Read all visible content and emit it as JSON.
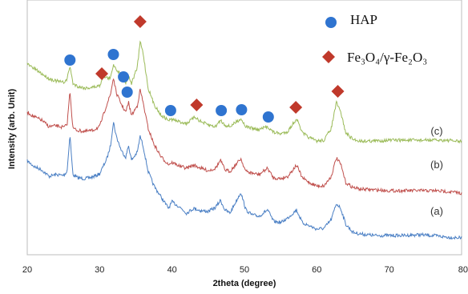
{
  "chart_data": {
    "type": "line",
    "title": "",
    "xlabel": "2theta (degree)",
    "ylabel": "Intensity (arb. Unit)",
    "xlim": [
      20,
      80
    ],
    "y_ticks_shown": false,
    "xticks": [
      20,
      30,
      40,
      50,
      60,
      70,
      80
    ],
    "xtick_labels": [
      "20",
      "30",
      "40",
      "50",
      "60",
      "70",
      "80"
    ],
    "grid": false,
    "legend": {
      "placement": "top-right",
      "entries": [
        {
          "text": "HAP",
          "marker": "circle",
          "color": "#2f74d0"
        },
        {
          "text": "Fe₃O₄/γ-Fe₂O₃",
          "marker": "diamond",
          "color": "#c0392b"
        }
      ]
    },
    "series": [
      {
        "name": "(a)",
        "color": "#4a7fc4",
        "points": [
          [
            20,
            201
          ],
          [
            21,
            208
          ],
          [
            22,
            212
          ],
          [
            23,
            220
          ],
          [
            24,
            218
          ],
          [
            25,
            219
          ],
          [
            25.5,
            214
          ],
          [
            25.9,
            168
          ],
          [
            26.3,
            218
          ],
          [
            27,
            222
          ],
          [
            28,
            223
          ],
          [
            29,
            221
          ],
          [
            30,
            217
          ],
          [
            31,
            198
          ],
          [
            31.5,
            182
          ],
          [
            31.9,
            152
          ],
          [
            32.3,
            170
          ],
          [
            33,
            188
          ],
          [
            33.6,
            196
          ],
          [
            34,
            182
          ],
          [
            34.4,
            200
          ],
          [
            35.2,
            190
          ],
          [
            35.6,
            170
          ],
          [
            36,
            182
          ],
          [
            36.7,
            214
          ],
          [
            37.5,
            232
          ],
          [
            38.5,
            246
          ],
          [
            39.5,
            260
          ],
          [
            40,
            252
          ],
          [
            41,
            258
          ],
          [
            42,
            266
          ],
          [
            43,
            260
          ],
          [
            44,
            263
          ],
          [
            45,
            264
          ],
          [
            46,
            259
          ],
          [
            46.7,
            250
          ],
          [
            47.3,
            262
          ],
          [
            48,
            266
          ],
          [
            49.5,
            240
          ],
          [
            50.2,
            262
          ],
          [
            51,
            268
          ],
          [
            52,
            270
          ],
          [
            53.2,
            262
          ],
          [
            54,
            276
          ],
          [
            55,
            278
          ],
          [
            56,
            272
          ],
          [
            57.2,
            262
          ],
          [
            58,
            278
          ],
          [
            59,
            282
          ],
          [
            60,
            286
          ],
          [
            61,
            285
          ],
          [
            62,
            274
          ],
          [
            62.7,
            254
          ],
          [
            63.3,
            260
          ],
          [
            64,
            280
          ],
          [
            65,
            290
          ],
          [
            66,
            292
          ],
          [
            68,
            294
          ],
          [
            70,
            294
          ],
          [
            72,
            294
          ],
          [
            74,
            293
          ],
          [
            76,
            294
          ],
          [
            78,
            296
          ],
          [
            80,
            297
          ]
        ]
      },
      {
        "name": "(b)",
        "color": "#c0504d",
        "points": [
          [
            20,
            140
          ],
          [
            21,
            146
          ],
          [
            22,
            150
          ],
          [
            23,
            158
          ],
          [
            24,
            157
          ],
          [
            25,
            159
          ],
          [
            25.5,
            156
          ],
          [
            25.9,
            113
          ],
          [
            26.3,
            160
          ],
          [
            27,
            163
          ],
          [
            28,
            164
          ],
          [
            29,
            163
          ],
          [
            30,
            158
          ],
          [
            31,
            130
          ],
          [
            31.5,
            118
          ],
          [
            31.9,
            97
          ],
          [
            32.3,
            116
          ],
          [
            33,
            130
          ],
          [
            33.6,
            140
          ],
          [
            34,
            128
          ],
          [
            34.4,
            144
          ],
          [
            35.2,
            132
          ],
          [
            35.6,
            112
          ],
          [
            36,
            128
          ],
          [
            36.7,
            160
          ],
          [
            37.5,
            180
          ],
          [
            38.5,
            196
          ],
          [
            39.5,
            205
          ],
          [
            40,
            203
          ],
          [
            41,
            207
          ],
          [
            42,
            210
          ],
          [
            43,
            206
          ],
          [
            44,
            210
          ],
          [
            45,
            213
          ],
          [
            46,
            210
          ],
          [
            46.7,
            200
          ],
          [
            47.3,
            212
          ],
          [
            48,
            214
          ],
          [
            49.5,
            198
          ],
          [
            50.2,
            214
          ],
          [
            51,
            216
          ],
          [
            52,
            218
          ],
          [
            53.2,
            210
          ],
          [
            54,
            222
          ],
          [
            55,
            223
          ],
          [
            56,
            220
          ],
          [
            57.2,
            206
          ],
          [
            58,
            222
          ],
          [
            59,
            228
          ],
          [
            60,
            232
          ],
          [
            61,
            232
          ],
          [
            62,
            220
          ],
          [
            62.7,
            197
          ],
          [
            63.3,
            205
          ],
          [
            64,
            228
          ],
          [
            65,
            234
          ],
          [
            66,
            236
          ],
          [
            68,
            237
          ],
          [
            70,
            238
          ],
          [
            72,
            238
          ],
          [
            74,
            238
          ],
          [
            76,
            238
          ],
          [
            78,
            239
          ],
          [
            80,
            241
          ]
        ]
      },
      {
        "name": "(c)",
        "color": "#9bbb59",
        "points": [
          [
            20,
            80
          ],
          [
            21,
            86
          ],
          [
            22,
            92
          ],
          [
            23,
            98
          ],
          [
            24,
            101
          ],
          [
            25,
            103
          ],
          [
            25.5,
            99
          ],
          [
            25.9,
            82
          ],
          [
            26.3,
            104
          ],
          [
            27,
            108
          ],
          [
            28,
            110
          ],
          [
            29,
            109
          ],
          [
            30,
            107
          ],
          [
            30.5,
            95
          ],
          [
            31,
            97
          ],
          [
            31.5,
            98
          ],
          [
            31.9,
            80
          ],
          [
            32.3,
            86
          ],
          [
            33,
            95
          ],
          [
            33.6,
            103
          ],
          [
            34,
            95
          ],
          [
            34.4,
            104
          ],
          [
            35.2,
            84
          ],
          [
            35.6,
            52
          ],
          [
            36,
            66
          ],
          [
            36.7,
            110
          ],
          [
            37.5,
            130
          ],
          [
            38.5,
            144
          ],
          [
            39.5,
            150
          ],
          [
            40,
            149
          ],
          [
            41,
            152
          ],
          [
            42,
            154
          ],
          [
            43.2,
            146
          ],
          [
            44,
            152
          ],
          [
            45,
            156
          ],
          [
            46,
            158
          ],
          [
            46.7,
            150
          ],
          [
            47.3,
            156
          ],
          [
            48,
            158
          ],
          [
            49.5,
            148
          ],
          [
            50.2,
            158
          ],
          [
            51,
            160
          ],
          [
            52,
            162
          ],
          [
            53.2,
            158
          ],
          [
            54,
            165
          ],
          [
            55,
            167
          ],
          [
            56,
            164
          ],
          [
            57.2,
            148
          ],
          [
            58,
            166
          ],
          [
            59,
            172
          ],
          [
            60,
            176
          ],
          [
            61,
            175
          ],
          [
            62,
            160
          ],
          [
            62.7,
            128
          ],
          [
            63.3,
            140
          ],
          [
            64,
            166
          ],
          [
            65,
            174
          ],
          [
            66,
            176
          ],
          [
            68,
            176
          ],
          [
            70,
            175
          ],
          [
            72,
            175
          ],
          [
            74,
            175
          ],
          [
            76,
            175
          ],
          [
            78,
            175
          ],
          [
            80,
            177
          ]
        ]
      }
    ],
    "markers": {
      "hap": [
        {
          "x": 25.9,
          "y": 75
        },
        {
          "x": 31.9,
          "y": 68
        },
        {
          "x": 33.3,
          "y": 96
        },
        {
          "x": 33.8,
          "y": 115
        },
        {
          "x": 39.8,
          "y": 138
        },
        {
          "x": 46.8,
          "y": 138
        },
        {
          "x": 49.6,
          "y": 137
        },
        {
          "x": 53.3,
          "y": 146
        }
      ],
      "fe": [
        {
          "x": 30.3,
          "y": 92
        },
        {
          "x": 35.6,
          "y": 27
        },
        {
          "x": 43.4,
          "y": 131
        },
        {
          "x": 57.1,
          "y": 134
        },
        {
          "x": 62.9,
          "y": 114
        }
      ]
    }
  }
}
